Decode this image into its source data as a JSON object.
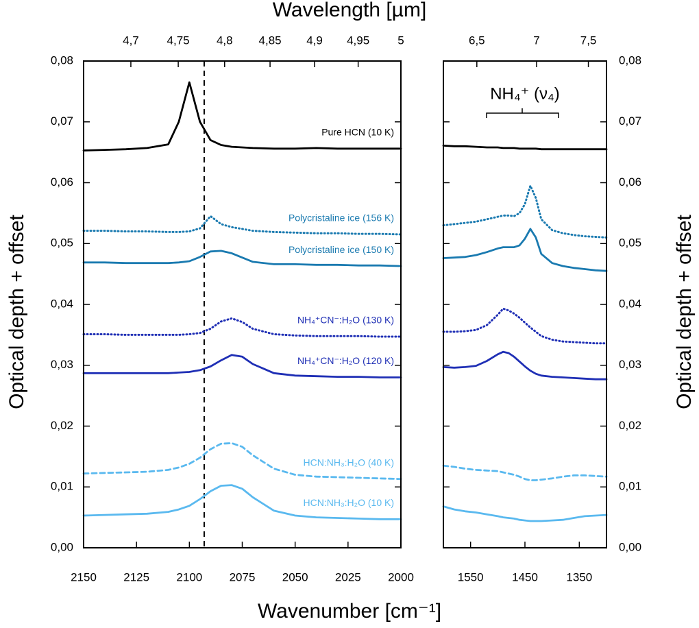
{
  "chart_data": [
    {
      "type": "line",
      "xlabel": "Wavenumber [cm⁻¹]",
      "x2label": "Wavelength [µm]",
      "ylabel": "Optical depth + offset",
      "xlim": [
        2150,
        2000
      ],
      "xticks": [
        2150,
        2125,
        2100,
        2075,
        2050,
        2025,
        2000
      ],
      "x2ticks": [
        {
          "value": 4.7,
          "label": "4,7"
        },
        {
          "value": 4.75,
          "label": "4,75"
        },
        {
          "value": 4.8,
          "label": "4,8"
        },
        {
          "value": 4.85,
          "label": "4,85"
        },
        {
          "value": 4.9,
          "label": "4,9"
        },
        {
          "value": 4.95,
          "label": "4,95"
        },
        5
      ],
      "ylim": [
        0,
        0.08
      ],
      "yticks": [
        {
          "value": 0,
          "label": "0,00"
        },
        {
          "value": 0.01,
          "label": "0,01"
        },
        {
          "value": 0.02,
          "label": "0,02"
        },
        {
          "value": 0.03,
          "label": "0,03"
        },
        {
          "value": 0.04,
          "label": "0,04"
        },
        {
          "value": 0.05,
          "label": "0,05"
        },
        {
          "value": 0.06,
          "label": "0,06"
        },
        {
          "value": 0.07,
          "label": "0,07"
        },
        {
          "value": 0.08,
          "label": "0,08"
        }
      ],
      "vline": 2093,
      "x": [
        2150,
        2140,
        2130,
        2120,
        2110,
        2105,
        2100,
        2095,
        2090,
        2085,
        2080,
        2075,
        2070,
        2060,
        2050,
        2040,
        2030,
        2020,
        2010,
        2000
      ],
      "series": [
        {
          "name": "Pure HCN (10 K)",
          "color": "#000000",
          "dash": "solid",
          "values": [
            0.0653,
            0.0654,
            0.0655,
            0.0657,
            0.0663,
            0.07,
            0.0765,
            0.07,
            0.067,
            0.0662,
            0.0659,
            0.0658,
            0.0657,
            0.0656,
            0.0656,
            0.0657,
            0.0656,
            0.0656,
            0.0656,
            0.0656
          ]
        },
        {
          "name": "Polycristaline ice (156 K)",
          "color": "#1a7ab0",
          "dash": "dotted",
          "values": [
            0.0521,
            0.0521,
            0.052,
            0.052,
            0.0519,
            0.0519,
            0.052,
            0.0525,
            0.0545,
            0.0532,
            0.0527,
            0.0524,
            0.0521,
            0.0519,
            0.0518,
            0.0517,
            0.0517,
            0.0516,
            0.0516,
            0.0515
          ]
        },
        {
          "name": "Polycristaline ice (150 K)",
          "color": "#1a7ab0",
          "dash": "solid",
          "values": [
            0.0469,
            0.0469,
            0.0468,
            0.0468,
            0.0468,
            0.0469,
            0.0471,
            0.0478,
            0.0487,
            0.0488,
            0.0484,
            0.0477,
            0.047,
            0.0466,
            0.0466,
            0.0465,
            0.0465,
            0.0464,
            0.0464,
            0.0463
          ]
        },
        {
          "name": "NH₄⁺CN⁻:H₂O (130 K)",
          "color": "#1f2fb5",
          "dash": "dotted",
          "values": [
            0.0351,
            0.0351,
            0.035,
            0.035,
            0.035,
            0.035,
            0.0351,
            0.0353,
            0.036,
            0.0372,
            0.0377,
            0.0371,
            0.036,
            0.0351,
            0.0349,
            0.0348,
            0.0348,
            0.0348,
            0.0347,
            0.0347
          ]
        },
        {
          "name": "NH₄⁺CN⁻:H₂O (120 K)",
          "color": "#1f2fb5",
          "dash": "solid",
          "values": [
            0.0287,
            0.0287,
            0.0287,
            0.0287,
            0.0287,
            0.0288,
            0.0289,
            0.0292,
            0.0298,
            0.0308,
            0.0317,
            0.0314,
            0.0302,
            0.0287,
            0.0283,
            0.0282,
            0.0281,
            0.0281,
            0.028,
            0.028
          ]
        },
        {
          "name": "HCN:NH₃:H₂O (40 K)",
          "color": "#5ab9ef",
          "dash": "dashed",
          "values": [
            0.0122,
            0.0123,
            0.0124,
            0.0125,
            0.0128,
            0.0132,
            0.0138,
            0.0148,
            0.0162,
            0.0171,
            0.0172,
            0.0166,
            0.0152,
            0.013,
            0.012,
            0.0117,
            0.0116,
            0.0115,
            0.0114,
            0.0113
          ]
        },
        {
          "name": "HCN:NH₃:H₂O (10 K)",
          "color": "#5ab9ef",
          "dash": "solid",
          "values": [
            0.0053,
            0.0054,
            0.0055,
            0.0056,
            0.0059,
            0.0063,
            0.0069,
            0.008,
            0.0093,
            0.0102,
            0.0103,
            0.0097,
            0.0083,
            0.0061,
            0.0053,
            0.005,
            0.0049,
            0.0048,
            0.0047,
            0.0047
          ]
        }
      ]
    },
    {
      "type": "line",
      "ylabel": "Optical depth + offset",
      "annotation": "NH₄⁺ (ν₄)",
      "xlim": [
        1600,
        1300
      ],
      "xticks": [
        1550,
        1450,
        1350
      ],
      "x2ticks": [
        {
          "value": 6.5,
          "label": "6,5"
        },
        7,
        {
          "value": 7.5,
          "label": "7,5"
        }
      ],
      "ylim": [
        0,
        0.08
      ],
      "yticks": [
        {
          "value": 0,
          "label": "0,00"
        },
        {
          "value": 0.01,
          "label": "0,01"
        },
        {
          "value": 0.02,
          "label": "0,02"
        },
        {
          "value": 0.03,
          "label": "0,03"
        },
        {
          "value": 0.04,
          "label": "0,04"
        },
        {
          "value": 0.05,
          "label": "0,05"
        },
        {
          "value": 0.06,
          "label": "0,06"
        },
        {
          "value": 0.07,
          "label": "0,07"
        },
        {
          "value": 0.08,
          "label": "0,08"
        }
      ],
      "x": [
        1600,
        1580,
        1560,
        1540,
        1520,
        1500,
        1490,
        1480,
        1470,
        1460,
        1450,
        1440,
        1430,
        1420,
        1400,
        1380,
        1360,
        1340,
        1320,
        1300
      ],
      "series": [
        {
          "color": "#000000",
          "dash": "solid",
          "values": [
            0.0661,
            0.066,
            0.066,
            0.0659,
            0.0658,
            0.0658,
            0.0657,
            0.0657,
            0.0657,
            0.0656,
            0.0656,
            0.0656,
            0.0656,
            0.0655,
            0.0655,
            0.0655,
            0.0655,
            0.0655,
            0.0655,
            0.0655
          ]
        },
        {
          "color": "#1a7ab0",
          "dash": "dotted",
          "values": [
            0.053,
            0.0532,
            0.0534,
            0.0536,
            0.054,
            0.0544,
            0.0546,
            0.0546,
            0.0545,
            0.055,
            0.0565,
            0.0595,
            0.0575,
            0.054,
            0.0522,
            0.0517,
            0.0514,
            0.0512,
            0.0511,
            0.051
          ]
        },
        {
          "color": "#1a7ab0",
          "dash": "solid",
          "values": [
            0.0476,
            0.0477,
            0.0478,
            0.0481,
            0.0486,
            0.0492,
            0.0494,
            0.0494,
            0.0494,
            0.0497,
            0.0508,
            0.0524,
            0.051,
            0.0483,
            0.0468,
            0.0463,
            0.046,
            0.0458,
            0.0456,
            0.0455
          ]
        },
        {
          "color": "#1f2fb5",
          "dash": "dotted",
          "values": [
            0.0355,
            0.0355,
            0.0356,
            0.0358,
            0.0366,
            0.0383,
            0.0393,
            0.039,
            0.0385,
            0.0378,
            0.037,
            0.0362,
            0.0355,
            0.0348,
            0.0342,
            0.0339,
            0.0338,
            0.0337,
            0.0336,
            0.0336
          ]
        },
        {
          "color": "#1f2fb5",
          "dash": "solid",
          "values": [
            0.0297,
            0.0296,
            0.0297,
            0.0299,
            0.0307,
            0.0318,
            0.0322,
            0.032,
            0.0314,
            0.0306,
            0.0298,
            0.0291,
            0.0286,
            0.0283,
            0.0281,
            0.028,
            0.0279,
            0.0278,
            0.0277,
            0.0277
          ]
        },
        {
          "color": "#5ab9ef",
          "dash": "dashed",
          "values": [
            0.0135,
            0.0133,
            0.013,
            0.0128,
            0.0127,
            0.0126,
            0.0124,
            0.0122,
            0.012,
            0.0117,
            0.0113,
            0.0111,
            0.0111,
            0.0112,
            0.0114,
            0.0117,
            0.0119,
            0.0119,
            0.0118,
            0.0117
          ]
        },
        {
          "color": "#5ab9ef",
          "dash": "solid",
          "values": [
            0.0068,
            0.0063,
            0.006,
            0.0058,
            0.0055,
            0.0052,
            0.005,
            0.0049,
            0.0048,
            0.0046,
            0.0045,
            0.0044,
            0.0044,
            0.0044,
            0.0045,
            0.0046,
            0.0049,
            0.0052,
            0.0053,
            0.0054
          ]
        }
      ]
    }
  ]
}
